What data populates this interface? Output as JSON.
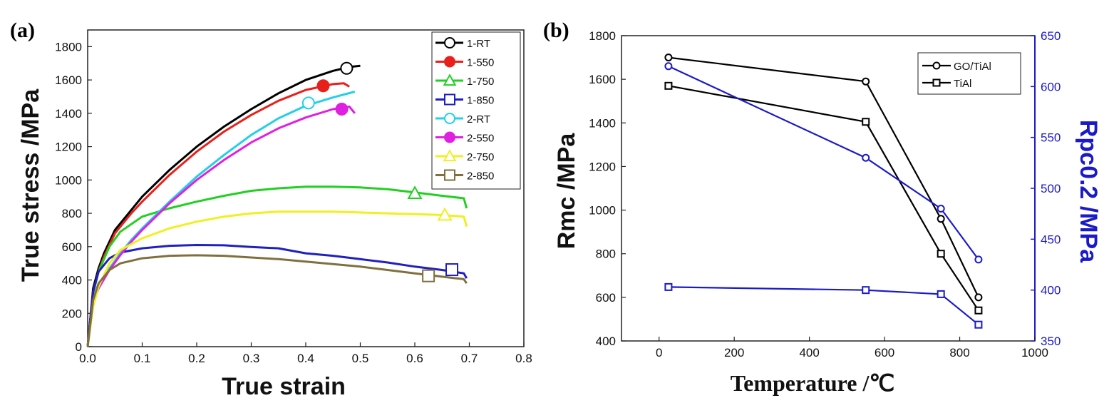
{
  "panel_a_label": "(a)",
  "panel_b_label": "(b)",
  "chart_data": [
    {
      "type": "line",
      "panel": "(a)",
      "xlabel": "True strain",
      "ylabel": "True stress /MPa",
      "xlim": [
        0.0,
        0.8
      ],
      "ylim": [
        0,
        1900
      ],
      "xticks": [
        "0.0",
        "0.1",
        "0.2",
        "0.3",
        "0.4",
        "0.5",
        "0.6",
        "0.7",
        "0.8"
      ],
      "yticks": [
        "0",
        "200",
        "400",
        "600",
        "800",
        "1000",
        "1200",
        "1400",
        "1600",
        "1800"
      ],
      "xtick_values": [
        0.0,
        0.1,
        0.2,
        0.3,
        0.4,
        0.5,
        0.6,
        0.7,
        0.8
      ],
      "ytick_values": [
        0,
        200,
        400,
        600,
        800,
        1000,
        1200,
        1400,
        1600,
        1800
      ],
      "legend_position": "top-right",
      "series": [
        {
          "name": "1-RT",
          "color": "#000000",
          "marker": "circle-open",
          "marker_point": [
            0.475,
            1670
          ],
          "x": [
            0,
            0.01,
            0.02,
            0.03,
            0.05,
            0.08,
            0.1,
            0.15,
            0.2,
            0.25,
            0.3,
            0.35,
            0.4,
            0.45,
            0.48,
            0.5
          ],
          "y": [
            0,
            350,
            470,
            560,
            700,
            820,
            900,
            1060,
            1200,
            1320,
            1425,
            1520,
            1600,
            1655,
            1678,
            1685
          ]
        },
        {
          "name": "1-550",
          "color": "#e8201b",
          "marker": "circle-filled",
          "marker_point": [
            0.432,
            1565
          ],
          "x": [
            0,
            0.01,
            0.02,
            0.03,
            0.05,
            0.08,
            0.1,
            0.15,
            0.2,
            0.25,
            0.3,
            0.35,
            0.4,
            0.45,
            0.47,
            0.48
          ],
          "y": [
            0,
            330,
            450,
            540,
            680,
            800,
            870,
            1030,
            1170,
            1290,
            1390,
            1475,
            1540,
            1575,
            1580,
            1560
          ]
        },
        {
          "name": "1-750",
          "color": "#22d022",
          "marker": "triangle-open",
          "marker_point": [
            0.6,
            920
          ],
          "x": [
            0,
            0.01,
            0.02,
            0.04,
            0.06,
            0.1,
            0.15,
            0.2,
            0.25,
            0.3,
            0.35,
            0.4,
            0.45,
            0.5,
            0.55,
            0.6,
            0.65,
            0.69,
            0.695
          ],
          "y": [
            0,
            320,
            450,
            600,
            690,
            780,
            830,
            870,
            905,
            935,
            950,
            960,
            960,
            955,
            945,
            925,
            905,
            890,
            830
          ]
        },
        {
          "name": "1-850",
          "color": "#2020c0",
          "marker": "square-open",
          "marker_point": [
            0.668,
            462
          ],
          "x": [
            0,
            0.01,
            0.02,
            0.04,
            0.06,
            0.1,
            0.15,
            0.2,
            0.25,
            0.3,
            0.35,
            0.4,
            0.45,
            0.5,
            0.55,
            0.6,
            0.65,
            0.69,
            0.695
          ],
          "y": [
            0,
            330,
            450,
            530,
            565,
            590,
            605,
            610,
            608,
            598,
            590,
            560,
            545,
            525,
            505,
            480,
            460,
            440,
            410
          ]
        },
        {
          "name": "2-RT",
          "color": "#22d0e8",
          "marker": "circle-open",
          "marker_point": [
            0.405,
            1462
          ],
          "x": [
            0,
            0.01,
            0.02,
            0.04,
            0.06,
            0.08,
            0.1,
            0.15,
            0.2,
            0.25,
            0.3,
            0.35,
            0.4,
            0.45,
            0.49
          ],
          "y": [
            0,
            270,
            360,
            470,
            560,
            640,
            710,
            870,
            1020,
            1150,
            1270,
            1370,
            1445,
            1495,
            1530
          ]
        },
        {
          "name": "2-550",
          "color": "#e020e0",
          "marker": "circle-filled",
          "marker_point": [
            0.466,
            1425
          ],
          "x": [
            0,
            0.01,
            0.02,
            0.04,
            0.06,
            0.08,
            0.1,
            0.15,
            0.2,
            0.25,
            0.3,
            0.35,
            0.4,
            0.45,
            0.48,
            0.49
          ],
          "y": [
            0,
            260,
            350,
            460,
            550,
            630,
            700,
            860,
            1000,
            1120,
            1225,
            1310,
            1375,
            1425,
            1440,
            1400
          ]
        },
        {
          "name": "2-750",
          "color": "#f0f020",
          "marker": "triangle-open",
          "marker_point": [
            0.655,
            790
          ],
          "x": [
            0,
            0.01,
            0.02,
            0.04,
            0.06,
            0.1,
            0.15,
            0.2,
            0.25,
            0.3,
            0.35,
            0.4,
            0.45,
            0.5,
            0.55,
            0.6,
            0.65,
            0.69,
            0.695
          ],
          "y": [
            0,
            240,
            360,
            500,
            580,
            650,
            710,
            750,
            780,
            800,
            810,
            810,
            810,
            805,
            800,
            795,
            790,
            780,
            720
          ]
        },
        {
          "name": "2-850",
          "color": "#807040",
          "marker": "square-open",
          "marker_point": [
            0.625,
            425
          ],
          "x": [
            0,
            0.01,
            0.02,
            0.04,
            0.06,
            0.1,
            0.15,
            0.2,
            0.25,
            0.3,
            0.35,
            0.4,
            0.45,
            0.5,
            0.55,
            0.6,
            0.65,
            0.69,
            0.695
          ],
          "y": [
            0,
            280,
            380,
            460,
            500,
            530,
            545,
            548,
            545,
            535,
            525,
            510,
            495,
            480,
            460,
            440,
            420,
            405,
            380
          ]
        }
      ]
    },
    {
      "type": "line",
      "panel": "(b)",
      "xlabel": "Temperature /℃",
      "ylabel_left": "Rmc /MPa",
      "ylabel_right": "Rpc0.2 /MPa",
      "xlim": [
        -100,
        1000
      ],
      "ylim_left": [
        400,
        1800
      ],
      "ylim_right": [
        350,
        650
      ],
      "xticks": [
        "0",
        "200",
        "400",
        "600",
        "800",
        "1000"
      ],
      "xtick_values": [
        0,
        200,
        400,
        600,
        800,
        1000
      ],
      "yticks_left": [
        "400",
        "600",
        "800",
        "1000",
        "1200",
        "1400",
        "1600",
        "1800"
      ],
      "ytick_values_left": [
        400,
        600,
        800,
        1000,
        1200,
        1400,
        1600,
        1800
      ],
      "yticks_right": [
        "350",
        "400",
        "450",
        "500",
        "550",
        "600",
        "650"
      ],
      "ytick_values_right": [
        350,
        400,
        450,
        500,
        550,
        600,
        650
      ],
      "legend_position": "top-right",
      "legend": [
        {
          "name": "GO/TiAl",
          "marker": "circle-open"
        },
        {
          "name": "TiAl",
          "marker": "square-open"
        }
      ],
      "series": [
        {
          "name": "GO/TiAl",
          "axis": "left",
          "color": "#000000",
          "marker": "circle-open",
          "x": [
            25,
            550,
            750,
            850
          ],
          "y": [
            1700,
            1590,
            960,
            600
          ]
        },
        {
          "name": "TiAl",
          "axis": "left",
          "color": "#000000",
          "marker": "square-open",
          "x": [
            25,
            550,
            750,
            850
          ],
          "y": [
            1570,
            1405,
            800,
            540
          ]
        },
        {
          "name": "GO/TiAl",
          "axis": "right",
          "color": "#1a1ac8",
          "marker": "circle-open",
          "x": [
            25,
            550,
            750,
            850
          ],
          "y": [
            620,
            530,
            480,
            430
          ]
        },
        {
          "name": "TiAl",
          "axis": "right",
          "color": "#1a1ac8",
          "marker": "square-open",
          "x": [
            25,
            550,
            750,
            850
          ],
          "y": [
            403,
            400,
            396,
            366
          ]
        }
      ],
      "right_axis_color": "#1a1ac8"
    }
  ]
}
